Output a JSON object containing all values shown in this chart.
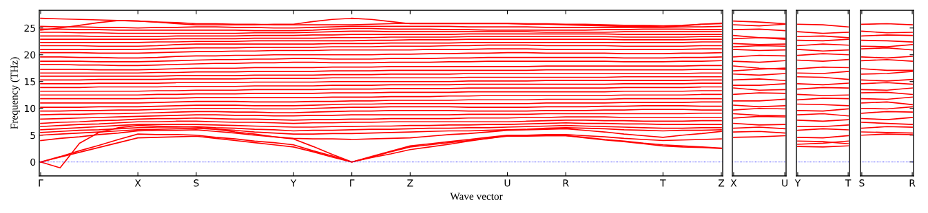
{
  "chart_data": [
    {
      "type": "line",
      "ylabel": "Frequency (THz)",
      "xlabel": "Wave vector",
      "color": "#ff0000",
      "line_style": "solid",
      "marker": "none",
      "grid": false,
      "tick_labels": "xy",
      "categories": [
        "Γ",
        null,
        null,
        null,
        null,
        "X",
        null,
        null,
        "S",
        null,
        null,
        null,
        null,
        "Y",
        null,
        null,
        "Γ",
        null,
        null,
        "Z",
        null,
        null,
        null,
        null,
        "U",
        null,
        null,
        "R",
        null,
        null,
        null,
        null,
        "T",
        null,
        null,
        "Z"
      ],
      "ylim": [
        -2.6,
        28.3
      ],
      "yticks": [
        0,
        5,
        10,
        15,
        20,
        25
      ],
      "ref_lines": [
        {
          "axis": "y",
          "value": 0,
          "color": "#0000ff",
          "line_style": "dotted"
        }
      ],
      "series": [
        {
          "values": [
            0,
            -1.1,
            3.5,
            5.5,
            6.4,
            6.8,
            6.7,
            6.6,
            6.5,
            6.1,
            5.6,
            5.2,
            4.7,
            4.3,
            2.9,
            1.4,
            0,
            0.8,
            1.5,
            2.3,
            2.8,
            3.3,
            3.9,
            4.4,
            4.9,
            4.9,
            4.9,
            4.9,
            4.6,
            4.2,
            3.9,
            3.5,
            3.2,
            3.0,
            2.8,
            2.6
          ]
        },
        {
          "values": [
            0,
            0.9,
            1.8,
            2.7,
            3.6,
            4.5,
            4.6,
            4.7,
            4.8,
            4.4,
            4.0,
            3.6,
            3.2,
            2.8,
            1.9,
            0.9,
            0,
            0.9,
            1.9,
            2.8,
            3.2,
            3.6,
            4.0,
            4.4,
            4.8,
            4.8,
            4.9,
            4.9,
            4.5,
            4.1,
            3.8,
            3.4,
            3.0,
            2.8,
            2.7,
            2.5
          ]
        },
        {
          "values": [
            0,
            1.0,
            2.1,
            3.1,
            4.2,
            5.2,
            5.1,
            5.1,
            5.0,
            4.6,
            4.3,
            3.9,
            3.6,
            3.2,
            2.1,
            1.1,
            0,
            1.0,
            2.0,
            3.0,
            3.4,
            3.8,
            4.2,
            4.6,
            5.0,
            5.0,
            5.1,
            5.1,
            4.9,
            4.7,
            4.4,
            4.2,
            4.0,
            4.1,
            4.2,
            4.3
          ]
        },
        {
          "values": [
            4.0,
            4.4,
            4.7,
            5.1,
            5.4,
            5.8,
            5.9,
            5.9,
            6.0,
            5.7,
            5.4,
            5.0,
            4.7,
            4.4,
            4.3,
            4.3,
            4.2,
            4.3,
            4.4,
            4.5,
            4.8,
            5.1,
            5.3,
            5.6,
            5.9,
            6.0,
            6.1,
            6.2,
            5.9,
            5.6,
            5.2,
            4.9,
            4.6,
            5.0,
            5.3,
            5.7
          ]
        },
        {
          "values": [
            5.0,
            5.2,
            5.4,
            5.6,
            5.8,
            6.0,
            6.1,
            6.2,
            6.3,
            6.1,
            5.9,
            5.6,
            5.4,
            5.2,
            5.2,
            5.3,
            5.3,
            5.4,
            5.5,
            5.6,
            5.7,
            5.8,
            5.8,
            5.9,
            6.0,
            6.1,
            6.3,
            6.4,
            6.3,
            6.2,
            6.0,
            5.9,
            5.8,
            5.9,
            5.9,
            6.0
          ]
        },
        {
          "values": [
            5.5,
            5.7,
            5.9,
            6.0,
            6.2,
            6.4,
            6.5,
            6.5,
            6.6,
            6.4,
            6.3,
            6.1,
            6.0,
            5.8,
            5.9,
            5.9,
            6.0,
            6.1,
            6.1,
            6.2,
            6.3,
            6.3,
            6.4,
            6.4,
            6.5,
            6.6,
            6.7,
            6.8,
            6.7,
            6.6,
            6.5,
            6.4,
            6.3,
            6.3,
            6.4,
            6.4
          ]
        },
        {
          "values": [
            6.0,
            6.2,
            6.4,
            6.6,
            6.8,
            7.0,
            7.0,
            7.0,
            7.0,
            6.9,
            6.8,
            6.7,
            6.6,
            6.5,
            6.5,
            6.6,
            6.6,
            6.7,
            6.7,
            6.8,
            6.8,
            6.9,
            6.9,
            7.0,
            7.0,
            7.1,
            7.2,
            7.3,
            7.2,
            7.2,
            7.1,
            7.1,
            7.0,
            7.0,
            7.0,
            7.0
          ]
        },
        {
          "values": [
            6.6,
            6.8,
            7.0,
            7.1,
            7.3,
            7.5,
            7.5,
            7.6,
            7.6,
            7.5,
            7.4,
            7.4,
            7.3,
            7.2,
            7.3,
            7.3,
            7.4,
            7.4,
            7.5,
            7.5,
            7.5,
            7.5,
            7.5,
            7.5,
            7.5,
            7.6,
            7.7,
            7.8,
            7.8,
            7.7,
            7.7,
            7.6,
            7.6,
            7.6,
            7.7,
            7.7
          ]
        },
        {
          "values": [
            7.2,
            7.4,
            7.5,
            7.7,
            7.8,
            8.0,
            8.1,
            8.1,
            8.2,
            8.1,
            8.0,
            8.0,
            7.9,
            7.8,
            7.9,
            7.9,
            8.0,
            8.0,
            8.1,
            8.1,
            8.1,
            8.1,
            8.2,
            8.2,
            8.2,
            8.3,
            8.3,
            8.4,
            8.4,
            8.4,
            8.3,
            8.3,
            8.3,
            8.3,
            8.3,
            8.3
          ]
        },
        {
          "values": [
            8.0,
            8.1,
            8.2,
            8.3,
            8.4,
            8.5,
            8.6,
            8.7,
            8.8,
            8.8,
            8.7,
            8.7,
            8.6,
            8.6,
            8.7,
            8.7,
            8.8,
            8.8,
            8.8,
            8.8,
            8.8,
            8.8,
            8.9,
            8.9,
            8.9,
            8.9,
            9.0,
            9.0,
            9.0,
            9.0,
            9.0,
            9.0,
            9.0,
            9.0,
            9.1,
            9.1
          ]
        },
        {
          "values": [
            8.8,
            8.9,
            8.9,
            9.0,
            9.0,
            9.1,
            9.2,
            9.3,
            9.4,
            9.4,
            9.3,
            9.3,
            9.2,
            9.2,
            9.3,
            9.4,
            9.5,
            9.5,
            9.6,
            9.6,
            9.6,
            9.6,
            9.5,
            9.5,
            9.5,
            9.5,
            9.6,
            9.6,
            9.6,
            9.7,
            9.7,
            9.8,
            9.8,
            9.8,
            9.7,
            9.7
          ]
        },
        {
          "values": [
            9.5,
            9.5,
            9.6,
            9.6,
            9.7,
            9.7,
            9.8,
            9.9,
            10.0,
            10.0,
            10.0,
            9.9,
            9.9,
            9.9,
            10.0,
            10.1,
            10.2,
            10.2,
            10.3,
            10.3,
            10.3,
            10.3,
            10.2,
            10.2,
            10.2,
            10.2,
            10.3,
            10.3,
            10.3,
            10.4,
            10.4,
            10.5,
            10.5,
            10.5,
            10.4,
            10.4
          ]
        },
        {
          "values": [
            10.2,
            10.2,
            10.2,
            10.3,
            10.3,
            10.3,
            10.4,
            10.5,
            10.6,
            10.6,
            10.6,
            10.5,
            10.5,
            10.5,
            10.6,
            10.7,
            10.8,
            10.8,
            10.9,
            10.9,
            10.9,
            10.9,
            10.9,
            10.9,
            10.9,
            10.9,
            11.0,
            11.0,
            11.0,
            11.0,
            11.1,
            11.1,
            11.1,
            11.1,
            11.2,
            11.2
          ]
        },
        {
          "values": [
            11.0,
            11.0,
            11.0,
            11.0,
            11.0,
            11.0,
            11.1,
            11.2,
            11.3,
            11.3,
            11.3,
            11.2,
            11.2,
            11.2,
            11.3,
            11.3,
            11.4,
            11.4,
            11.5,
            11.5,
            11.5,
            11.5,
            11.6,
            11.6,
            11.6,
            11.6,
            11.7,
            11.7,
            11.7,
            11.7,
            11.8,
            11.8,
            11.8,
            11.8,
            11.8,
            11.8
          ]
        },
        {
          "values": [
            11.8,
            11.8,
            11.8,
            11.8,
            11.8,
            11.8,
            11.9,
            11.9,
            12.0,
            12.0,
            12.0,
            12.0,
            12.0,
            12.0,
            12.0,
            12.1,
            12.1,
            12.1,
            12.2,
            12.2,
            12.2,
            12.3,
            12.3,
            12.4,
            12.4,
            12.4,
            12.4,
            12.4,
            12.4,
            12.4,
            12.5,
            12.5,
            12.5,
            12.5,
            12.6,
            12.6
          ]
        },
        {
          "values": [
            12.5,
            12.5,
            12.5,
            12.5,
            12.5,
            12.5,
            12.6,
            12.6,
            12.7,
            12.7,
            12.7,
            12.8,
            12.8,
            12.8,
            12.8,
            12.9,
            12.9,
            12.9,
            13.0,
            13.0,
            13.0,
            13.0,
            13.1,
            13.1,
            13.1,
            13.1,
            13.1,
            13.1,
            13.1,
            13.1,
            13.2,
            13.2,
            13.2,
            13.2,
            13.3,
            13.3
          ]
        },
        {
          "values": [
            13.2,
            13.2,
            13.2,
            13.2,
            13.2,
            13.2,
            13.3,
            13.3,
            13.4,
            13.4,
            13.4,
            13.5,
            13.5,
            13.5,
            13.5,
            13.6,
            13.6,
            13.6,
            13.7,
            13.7,
            13.7,
            13.7,
            13.8,
            13.8,
            13.8,
            13.8,
            13.8,
            13.8,
            13.8,
            13.8,
            13.9,
            13.9,
            13.9,
            13.9,
            14.0,
            14.0
          ]
        },
        {
          "values": [
            13.9,
            13.9,
            13.9,
            14.0,
            14.0,
            14.0,
            14.0,
            14.1,
            14.1,
            14.1,
            14.1,
            14.2,
            14.2,
            14.2,
            14.2,
            14.3,
            14.3,
            14.3,
            14.4,
            14.4,
            14.4,
            14.4,
            14.5,
            14.5,
            14.5,
            14.5,
            14.5,
            14.5,
            14.5,
            14.5,
            14.6,
            14.6,
            14.6,
            14.6,
            14.7,
            14.7
          ]
        },
        {
          "values": [
            14.6,
            14.6,
            14.6,
            14.7,
            14.7,
            14.7,
            14.7,
            14.8,
            14.8,
            14.8,
            14.8,
            14.9,
            14.9,
            14.9,
            14.9,
            15.0,
            15.0,
            15.0,
            15.0,
            15.0,
            15.0,
            15.0,
            15.1,
            15.1,
            15.1,
            15.1,
            15.2,
            15.2,
            15.2,
            15.2,
            15.2,
            15.2,
            15.2,
            15.2,
            15.3,
            15.3
          ]
        },
        {
          "values": [
            15.3,
            15.3,
            15.3,
            15.4,
            15.4,
            15.4,
            15.4,
            15.5,
            15.5,
            15.5,
            15.5,
            15.6,
            15.6,
            15.6,
            15.6,
            15.7,
            15.7,
            15.7,
            15.7,
            15.7,
            15.7,
            15.7,
            15.8,
            15.8,
            15.8,
            15.8,
            15.8,
            15.8,
            15.8,
            15.8,
            15.9,
            15.9,
            15.9,
            15.9,
            15.9,
            15.9
          ]
        },
        {
          "values": [
            16.0,
            16.0,
            16.0,
            16.0,
            16.0,
            16.0,
            16.0,
            16.1,
            16.1,
            16.1,
            16.1,
            16.2,
            16.2,
            16.2,
            16.2,
            16.3,
            16.3,
            16.3,
            16.4,
            16.4,
            16.4,
            16.4,
            16.5,
            16.5,
            16.5,
            16.5,
            16.5,
            16.5,
            16.5,
            16.5,
            16.5,
            16.5,
            16.5,
            16.5,
            16.6,
            16.6
          ]
        },
        {
          "values": [
            16.6,
            16.6,
            16.6,
            16.6,
            16.6,
            16.6,
            16.7,
            16.7,
            16.8,
            16.8,
            16.8,
            16.9,
            16.9,
            16.9,
            16.9,
            17.0,
            17.0,
            17.0,
            17.1,
            17.1,
            17.1,
            17.1,
            17.1,
            17.1,
            17.1,
            17.1,
            17.2,
            17.2,
            17.2,
            17.2,
            17.2,
            17.2,
            17.2,
            17.2,
            17.3,
            17.3
          ]
        },
        {
          "values": [
            17.3,
            17.3,
            17.3,
            17.2,
            17.2,
            17.2,
            17.3,
            17.4,
            17.5,
            17.5,
            17.5,
            17.6,
            17.6,
            17.6,
            17.6,
            17.7,
            17.7,
            17.7,
            17.8,
            17.8,
            17.8,
            17.8,
            17.8,
            17.8,
            17.8,
            17.8,
            17.9,
            17.9,
            17.9,
            17.9,
            17.9,
            17.9,
            17.9,
            17.9,
            18.0,
            18.0
          ]
        },
        {
          "values": [
            18.2,
            18.2,
            18.1,
            18.1,
            18.0,
            18.0,
            18.1,
            18.2,
            18.3,
            18.4,
            18.4,
            18.5,
            18.5,
            18.6,
            18.6,
            18.5,
            18.5,
            18.5,
            18.6,
            18.6,
            18.6,
            18.7,
            18.7,
            18.8,
            18.8,
            18.8,
            18.8,
            18.8,
            18.8,
            18.8,
            18.7,
            18.7,
            18.7,
            18.8,
            18.8,
            18.9
          ]
        },
        {
          "values": [
            18.8,
            18.8,
            18.8,
            18.7,
            18.7,
            18.7,
            18.8,
            18.9,
            19.0,
            19.1,
            19.1,
            19.2,
            19.2,
            19.3,
            19.3,
            19.2,
            19.2,
            19.2,
            19.3,
            19.3,
            19.3,
            19.4,
            19.4,
            19.5,
            19.5,
            19.5,
            19.5,
            19.5,
            19.5,
            19.5,
            19.4,
            19.4,
            19.4,
            19.5,
            19.5,
            19.6
          ]
        },
        {
          "values": [
            19.6,
            19.6,
            19.5,
            19.5,
            19.4,
            19.4,
            19.5,
            19.7,
            19.8,
            19.8,
            19.9,
            19.9,
            20.0,
            20.0,
            20.0,
            20.0,
            20.0,
            20.0,
            20.1,
            20.1,
            20.2,
            20.2,
            20.3,
            20.3,
            20.4,
            20.4,
            20.3,
            20.3,
            20.3,
            20.3,
            20.2,
            20.2,
            20.2,
            20.3,
            20.3,
            20.4
          ]
        },
        {
          "values": [
            20.4,
            20.4,
            20.4,
            20.3,
            20.3,
            20.3,
            20.4,
            20.5,
            20.6,
            20.6,
            20.7,
            20.7,
            20.8,
            20.8,
            20.8,
            20.9,
            20.9,
            20.9,
            20.9,
            20.9,
            21.0,
            21.0,
            21.0,
            21.1,
            21.1,
            21.1,
            21.0,
            21.0,
            21.0,
            21.0,
            21.0,
            21.0,
            21.0,
            21.0,
            21.1,
            21.1
          ]
        },
        {
          "values": [
            21.0,
            21.0,
            21.0,
            21.0,
            21.0,
            21.0,
            21.1,
            21.2,
            21.3,
            21.3,
            21.3,
            21.4,
            21.4,
            21.4,
            21.4,
            21.5,
            21.5,
            21.5,
            21.6,
            21.6,
            21.6,
            21.7,
            21.7,
            21.8,
            21.8,
            21.8,
            21.7,
            21.7,
            21.7,
            21.7,
            21.6,
            21.6,
            21.6,
            21.6,
            21.7,
            21.7
          ]
        },
        {
          "values": [
            21.7,
            21.7,
            21.7,
            21.6,
            21.6,
            21.6,
            21.7,
            21.9,
            22.0,
            22.0,
            22.0,
            22.0,
            22.0,
            22.0,
            22.0,
            22.1,
            22.1,
            22.1,
            22.2,
            22.2,
            22.2,
            22.2,
            22.3,
            22.3,
            22.3,
            22.3,
            22.3,
            22.3,
            22.3,
            22.3,
            22.3,
            22.3,
            22.3,
            22.3,
            22.4,
            22.4
          ]
        },
        {
          "values": [
            22.3,
            22.3,
            22.3,
            22.3,
            22.3,
            22.3,
            22.4,
            22.4,
            22.5,
            22.5,
            22.5,
            22.6,
            22.6,
            22.6,
            22.6,
            22.6,
            22.6,
            22.7,
            22.7,
            22.8,
            22.8,
            22.8,
            22.9,
            22.9,
            22.9,
            22.9,
            22.9,
            22.9,
            22.9,
            22.9,
            22.8,
            22.8,
            22.8,
            22.8,
            22.9,
            22.9
          ]
        },
        {
          "values": [
            22.9,
            22.9,
            22.9,
            22.9,
            22.9,
            22.9,
            22.9,
            23.0,
            23.0,
            23.0,
            23.0,
            23.1,
            23.1,
            23.1,
            23.1,
            23.2,
            23.2,
            23.2,
            23.3,
            23.3,
            23.3,
            23.3,
            23.4,
            23.4,
            23.4,
            23.4,
            23.4,
            23.4,
            23.4,
            23.4,
            23.3,
            23.3,
            23.3,
            23.3,
            23.4,
            23.4
          ]
        },
        {
          "values": [
            23.5,
            23.5,
            23.5,
            23.4,
            23.4,
            23.4,
            23.4,
            23.5,
            23.5,
            23.5,
            23.5,
            23.6,
            23.6,
            23.6,
            23.7,
            23.7,
            23.8,
            23.8,
            23.8,
            23.8,
            23.8,
            23.8,
            23.9,
            23.9,
            23.9,
            23.9,
            23.9,
            23.9,
            23.9,
            23.9,
            23.8,
            23.8,
            23.8,
            23.8,
            23.8,
            23.8
          ]
        },
        {
          "values": [
            24.2,
            24.2,
            24.1,
            24.1,
            24.0,
            24.0,
            24.0,
            24.0,
            24.0,
            24.0,
            24.0,
            24.1,
            24.1,
            24.1,
            24.2,
            24.3,
            24.4,
            24.4,
            24.3,
            24.3,
            24.3,
            24.3,
            24.3,
            24.3,
            24.3,
            24.3,
            24.2,
            24.2,
            24.2,
            24.2,
            24.3,
            24.3,
            24.3,
            24.3,
            24.3,
            24.3
          ]
        },
        {
          "values": [
            24.8,
            24.8,
            24.7,
            24.7,
            24.6,
            24.6,
            24.6,
            24.6,
            24.6,
            24.6,
            24.6,
            24.5,
            24.5,
            24.5,
            24.6,
            24.8,
            24.9,
            24.9,
            24.8,
            24.8,
            24.8,
            24.7,
            24.7,
            24.6,
            24.6,
            24.6,
            24.6,
            24.6,
            24.6,
            24.7,
            24.7,
            24.8,
            24.8,
            24.8,
            24.7,
            24.7
          ]
        },
        {
          "values": [
            25.3,
            25.2,
            25.2,
            25.1,
            25.1,
            25.0,
            25.1,
            25.1,
            25.2,
            25.2,
            25.1,
            25.1,
            25.0,
            25.0,
            25.1,
            25.2,
            25.3,
            25.3,
            25.3,
            25.3,
            25.3,
            25.3,
            25.2,
            25.2,
            25.2,
            25.2,
            25.1,
            25.1,
            25.1,
            25.1,
            25.1,
            25.1,
            25.1,
            25.2,
            25.2,
            25.3
          ]
        },
        {
          "values": [
            24.6,
            25.0,
            25.5,
            26.0,
            26.4,
            26.3,
            26.1,
            25.8,
            25.6,
            25.6,
            25.6,
            25.6,
            25.7,
            25.7,
            26.2,
            26.6,
            26.8,
            26.6,
            26.2,
            25.8,
            25.8,
            25.8,
            25.8,
            25.8,
            25.8,
            25.7,
            25.7,
            25.6,
            25.5,
            25.4,
            25.3,
            25.3,
            25.2,
            25.4,
            25.7,
            25.9
          ]
        },
        {
          "values": [
            26.8,
            26.7,
            26.6,
            26.5,
            26.4,
            26.3,
            26.1,
            26.0,
            25.8,
            25.8,
            25.7,
            25.7,
            25.6,
            25.6,
            25.6,
            25.6,
            25.6,
            25.7,
            25.8,
            25.9,
            25.9,
            25.9,
            25.9,
            25.9,
            25.9,
            25.8,
            25.8,
            25.7,
            25.7,
            25.6,
            25.5,
            25.5,
            25.4,
            25.5,
            25.7,
            25.8
          ]
        }
      ]
    },
    {
      "type": "line",
      "color": "#ff0000",
      "line_style": "solid",
      "marker": "none",
      "grid": false,
      "tick_labels": "x",
      "categories": [
        "X",
        null,
        "U"
      ],
      "ylim": [
        -2.6,
        28.3
      ],
      "yticks": [
        0,
        5,
        10,
        15,
        20,
        25
      ],
      "ref_lines": [
        {
          "axis": "y",
          "value": 0,
          "color": "#0000ff",
          "line_style": "dotted"
        }
      ],
      "series": [
        {
          "values": [
            26.3,
            26.1,
            25.8
          ]
        },
        {
          "values": [
            25.6,
            25.4,
            25.7
          ]
        },
        {
          "values": [
            24.7,
            24.8,
            24.5
          ]
        },
        {
          "values": [
            23.6,
            23.2,
            23.1
          ]
        },
        {
          "values": [
            23.0,
            23.2,
            22.9
          ]
        },
        {
          "values": [
            22.1,
            21.9,
            22.0
          ]
        },
        {
          "values": [
            21.5,
            21.7,
            21.6
          ]
        },
        {
          "values": [
            21.0,
            20.8,
            20.9
          ]
        },
        {
          "values": [
            19.6,
            19.9,
            19.8
          ]
        },
        {
          "values": [
            18.8,
            18.6,
            18.9
          ]
        },
        {
          "values": [
            17.9,
            17.5,
            17.3
          ]
        },
        {
          "values": [
            17.0,
            17.3,
            17.5
          ]
        },
        {
          "values": [
            16.4,
            16.2,
            16.5
          ]
        },
        {
          "values": [
            15.3,
            15.5,
            15.2
          ]
        },
        {
          "values": [
            14.3,
            14.3,
            14.6
          ]
        },
        {
          "values": [
            13.8,
            13.4,
            13.5
          ]
        },
        {
          "values": [
            12.6,
            12.9,
            12.8
          ]
        },
        {
          "values": [
            11.4,
            11.4,
            11.7
          ]
        },
        {
          "values": [
            10.6,
            10.3,
            10.5
          ]
        },
        {
          "values": [
            9.7,
            10.0,
            9.9
          ]
        },
        {
          "values": [
            9.0,
            8.7,
            8.6
          ]
        },
        {
          "values": [
            8.2,
            8.5,
            8.4
          ]
        },
        {
          "values": [
            7.2,
            6.9,
            7.0
          ]
        },
        {
          "values": [
            6.3,
            6.5,
            6.2
          ]
        },
        {
          "values": [
            5.6,
            5.7,
            5.4
          ]
        },
        {
          "values": [
            4.6,
            4.7,
            4.9
          ]
        }
      ]
    },
    {
      "type": "line",
      "color": "#ff0000",
      "line_style": "solid",
      "marker": "none",
      "grid": false,
      "tick_labels": "x",
      "categories": [
        "Y",
        null,
        "T"
      ],
      "ylim": [
        -2.6,
        28.3
      ],
      "yticks": [
        0,
        5,
        10,
        15,
        20,
        25
      ],
      "ref_lines": [
        {
          "axis": "y",
          "value": 0,
          "color": "#0000ff",
          "line_style": "dotted"
        }
      ],
      "series": [
        {
          "values": [
            25.7,
            25.6,
            25.2
          ]
        },
        {
          "values": [
            24.3,
            24.0,
            24.2
          ]
        },
        {
          "values": [
            23.4,
            23.5,
            23.2
          ]
        },
        {
          "values": [
            22.7,
            22.6,
            22.9
          ]
        },
        {
          "values": [
            21.7,
            22.0,
            21.8
          ]
        },
        {
          "values": [
            21.0,
            20.7,
            20.9
          ]
        },
        {
          "values": [
            19.9,
            20.2,
            20.0
          ]
        },
        {
          "values": [
            19.0,
            18.8,
            19.1
          ]
        },
        {
          "values": [
            17.4,
            17.7,
            17.6
          ]
        },
        {
          "values": [
            16.6,
            16.5,
            16.9
          ]
        },
        {
          "values": [
            15.9,
            15.8,
            15.4
          ]
        },
        {
          "values": [
            14.6,
            14.4,
            14.7
          ]
        },
        {
          "values": [
            13.6,
            13.9,
            13.8
          ]
        },
        {
          "values": [
            12.6,
            12.4,
            12.5
          ]
        },
        {
          "values": [
            11.6,
            11.9,
            11.8
          ]
        },
        {
          "values": [
            10.8,
            10.7,
            10.5
          ]
        },
        {
          "values": [
            9.6,
            9.5,
            9.9
          ]
        },
        {
          "values": [
            8.8,
            9.0,
            8.6
          ]
        },
        {
          "values": [
            7.8,
            7.6,
            7.9
          ]
        },
        {
          "values": [
            6.6,
            6.6,
            6.9
          ]
        },
        {
          "values": [
            5.9,
            6.2,
            6.0
          ]
        },
        {
          "values": [
            4.6,
            4.5,
            4.9
          ]
        },
        {
          "values": [
            3.9,
            3.8,
            3.4
          ]
        },
        {
          "values": [
            3.3,
            3.5,
            3.9
          ]
        },
        {
          "values": [
            2.9,
            2.8,
            3.0
          ]
        }
      ]
    },
    {
      "type": "line",
      "color": "#ff0000",
      "line_style": "solid",
      "marker": "none",
      "grid": false,
      "tick_labels": "x",
      "categories": [
        "S",
        null,
        "R"
      ],
      "ylim": [
        -2.6,
        28.3
      ],
      "yticks": [
        0,
        5,
        10,
        15,
        20,
        25
      ],
      "ref_lines": [
        {
          "axis": "y",
          "value": 0,
          "color": "#0000ff",
          "line_style": "dotted"
        }
      ],
      "series": [
        {
          "values": [
            25.7,
            25.8,
            25.6
          ]
        },
        {
          "values": [
            24.4,
            24.1,
            24.2
          ]
        },
        {
          "values": [
            23.5,
            23.7,
            23.6
          ]
        },
        {
          "values": [
            22.7,
            22.6,
            22.4
          ]
        },
        {
          "values": [
            21.6,
            21.5,
            21.9
          ]
        },
        {
          "values": [
            21.1,
            21.3,
            20.9
          ]
        },
        {
          "values": [
            19.6,
            19.4,
            19.7
          ]
        },
        {
          "values": [
            18.9,
            19.1,
            18.8
          ]
        },
        {
          "values": [
            17.4,
            17.1,
            17.1
          ]
        },
        {
          "values": [
            16.4,
            16.5,
            16.9
          ]
        },
        {
          "values": [
            15.3,
            15.1,
            15.4
          ]
        },
        {
          "values": [
            14.6,
            14.8,
            14.5
          ]
        },
        {
          "values": [
            13.5,
            13.4,
            13.8
          ]
        },
        {
          "values": [
            12.9,
            13.0,
            12.6
          ]
        },
        {
          "values": [
            11.8,
            11.7,
            12.1
          ]
        },
        {
          "values": [
            11.0,
            11.2,
            10.7
          ]
        },
        {
          "values": [
            10.0,
            9.9,
            10.3
          ]
        },
        {
          "values": [
            9.1,
            9.4,
            9.3
          ]
        },
        {
          "values": [
            8.1,
            7.9,
            8.3
          ]
        },
        {
          "values": [
            7.4,
            7.2,
            7.0
          ]
        },
        {
          "values": [
            6.3,
            6.6,
            6.5
          ]
        },
        {
          "values": [
            5.6,
            5.5,
            5.4
          ]
        },
        {
          "values": [
            5.0,
            5.2,
            5.1
          ]
        }
      ]
    }
  ]
}
